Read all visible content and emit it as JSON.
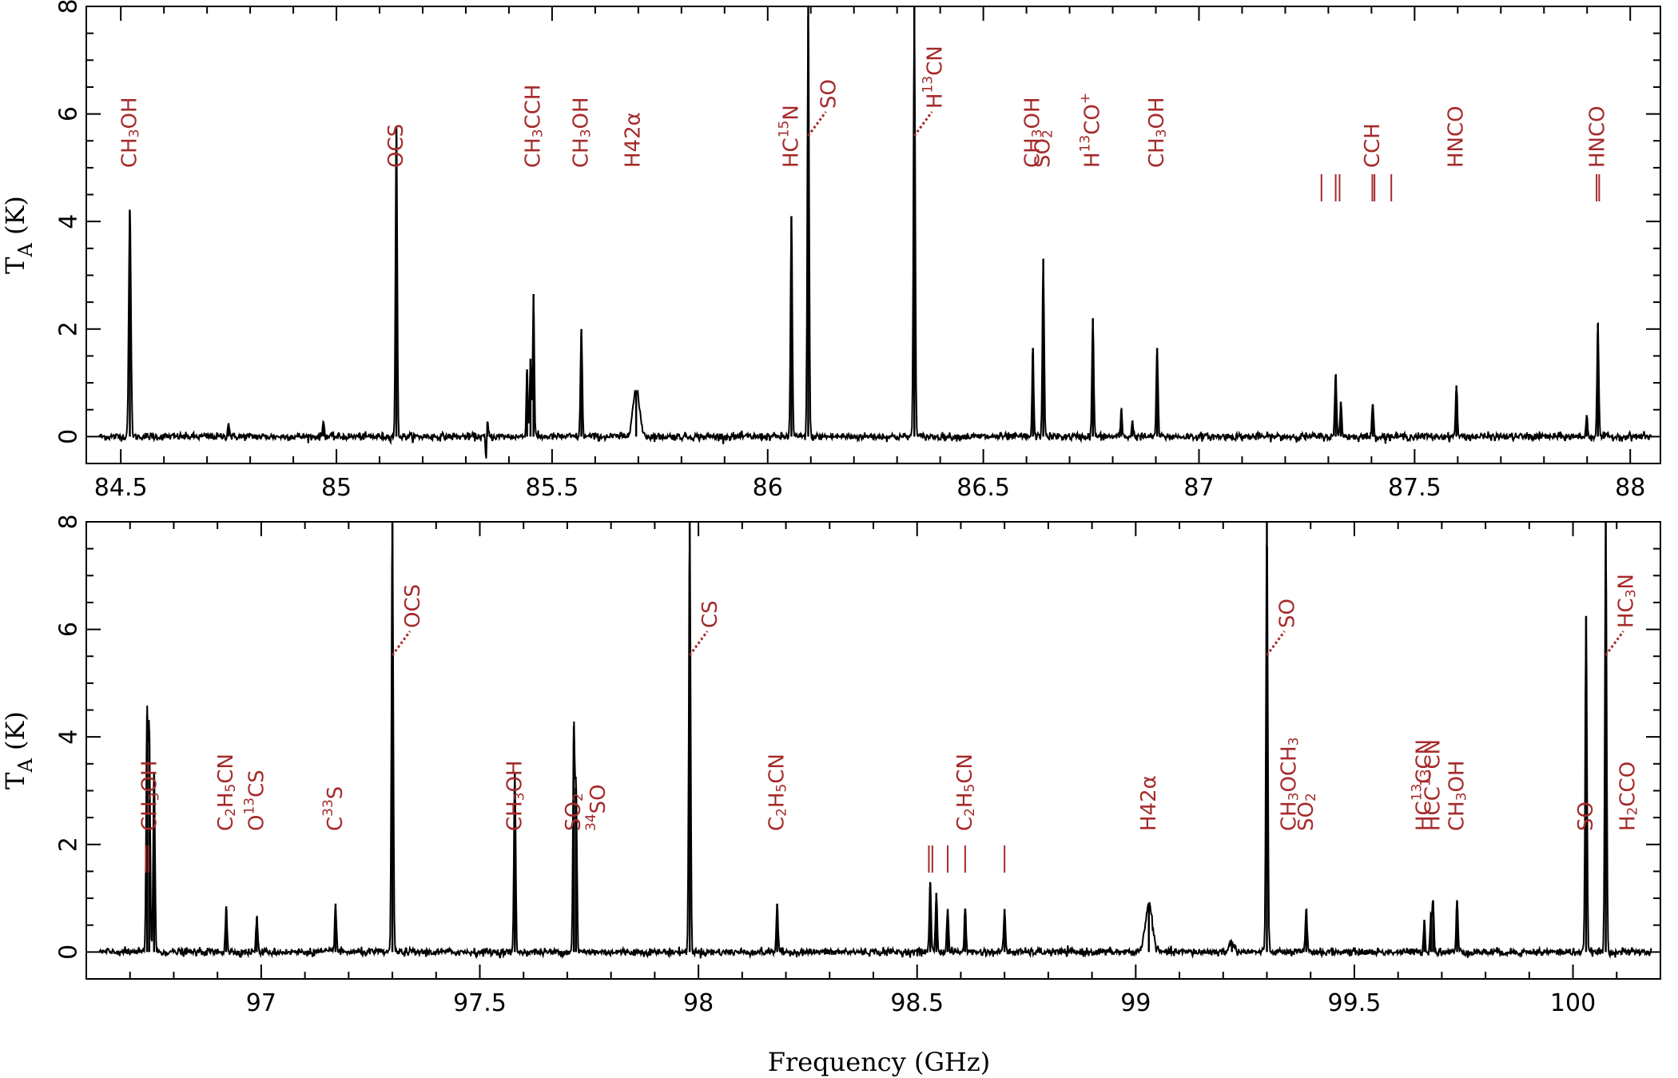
{
  "chart_data": [
    {
      "type": "line",
      "panel": "top",
      "xlim": [
        84.42,
        88.07
      ],
      "ylim": [
        -0.5,
        8
      ],
      "xticks": [
        84.5,
        85,
        85.5,
        86,
        86.5,
        87,
        87.5,
        88
      ],
      "xtick_labels": [
        "84.5",
        "85",
        "85.5",
        "86",
        "86.5",
        "87",
        "87.5",
        "88"
      ],
      "yticks": [
        0,
        2,
        4,
        6,
        8
      ],
      "ytick_labels": [
        "0",
        "2",
        "4",
        "6",
        "8"
      ],
      "ylabel": "T",
      "ylabel_sub": "A",
      "ylabel_unit": "(K)",
      "xlabel": "",
      "noise_sigma": 0.035,
      "peaks": [
        {
          "x": 84.521,
          "y": 4.2,
          "w": 0.0025
        },
        {
          "x": 84.75,
          "y": 0.25,
          "w": 0.002
        },
        {
          "x": 84.97,
          "y": 0.28,
          "w": 0.002
        },
        {
          "x": 85.139,
          "y": 5.75,
          "w": 0.002
        },
        {
          "x": 85.35,
          "y": 0.28,
          "w": 0.002
        },
        {
          "x": 85.442,
          "y": 1.25,
          "w": 0.0018
        },
        {
          "x": 85.45,
          "y": 1.45,
          "w": 0.0018
        },
        {
          "x": 85.457,
          "y": 2.65,
          "w": 0.0018
        },
        {
          "x": 85.568,
          "y": 2.0,
          "w": 0.002
        },
        {
          "x": 85.695,
          "y": 0.85,
          "w": 0.008
        },
        {
          "x": 86.055,
          "y": 4.1,
          "w": 0.002
        },
        {
          "x": 86.094,
          "y": 8.0,
          "w": 0.002
        },
        {
          "x": 86.34,
          "y": 8.0,
          "w": 0.002
        },
        {
          "x": 86.615,
          "y": 1.65,
          "w": 0.0018
        },
        {
          "x": 86.639,
          "y": 3.3,
          "w": 0.002
        },
        {
          "x": 86.754,
          "y": 2.2,
          "w": 0.002
        },
        {
          "x": 86.82,
          "y": 0.5,
          "w": 0.0018
        },
        {
          "x": 86.846,
          "y": 0.3,
          "w": 0.0018
        },
        {
          "x": 86.903,
          "y": 1.65,
          "w": 0.002
        },
        {
          "x": 87.317,
          "y": 1.15,
          "w": 0.002
        },
        {
          "x": 87.329,
          "y": 0.65,
          "w": 0.002
        },
        {
          "x": 87.403,
          "y": 0.6,
          "w": 0.002
        },
        {
          "x": 87.597,
          "y": 0.95,
          "w": 0.002
        },
        {
          "x": 87.899,
          "y": 0.4,
          "w": 0.0018
        },
        {
          "x": 87.925,
          "y": 2.1,
          "w": 0.002
        }
      ],
      "dips": [
        {
          "x": 85.347,
          "y": -0.5,
          "w": 0.0015
        }
      ],
      "labels": [
        {
          "x": 84.521,
          "segments": [
            [
              "CH"
            ],
            [
              "3",
              "sub"
            ],
            [
              "OH"
            ]
          ]
        },
        {
          "x": 85.139,
          "segments": [
            [
              "OCS"
            ]
          ]
        },
        {
          "x": 85.457,
          "segments": [
            [
              "CH"
            ],
            [
              "3",
              "sub"
            ],
            [
              "CCH"
            ]
          ]
        },
        {
          "x": 85.568,
          "segments": [
            [
              "CH"
            ],
            [
              "3",
              "sub"
            ],
            [
              "OH"
            ]
          ]
        },
        {
          "x": 85.688,
          "segments": [
            [
              "H42α"
            ]
          ]
        },
        {
          "x": 86.055,
          "segments": [
            [
              "HC"
            ],
            [
              "15",
              "sup"
            ],
            [
              "N"
            ]
          ]
        },
        {
          "x": 86.094,
          "segments": [
            [
              "SO"
            ]
          ],
          "dotted": true
        },
        {
          "x": 86.34,
          "segments": [
            [
              "H"
            ],
            [
              "13",
              "sup"
            ],
            [
              "CN"
            ]
          ],
          "dotted": true
        },
        {
          "x": 86.615,
          "segments": [
            [
              "CH"
            ],
            [
              "3",
              "sub"
            ],
            [
              "OH"
            ]
          ]
        },
        {
          "x": 86.639,
          "segments": [
            [
              "SO"
            ],
            [
              "2",
              "sub"
            ]
          ]
        },
        {
          "x": 86.754,
          "segments": [
            [
              "H"
            ],
            [
              "13",
              "sup"
            ],
            [
              "CO"
            ],
            [
              "+",
              "sup"
            ]
          ]
        },
        {
          "x": 86.903,
          "segments": [
            [
              "CH"
            ],
            [
              "3",
              "sub"
            ],
            [
              "OH"
            ]
          ]
        },
        {
          "x": 87.403,
          "segments": [
            [
              "CCH"
            ]
          ]
        },
        {
          "x": 87.597,
          "segments": [
            [
              "HNCO"
            ]
          ]
        },
        {
          "x": 87.925,
          "segments": [
            [
              "HNCO"
            ]
          ]
        }
      ],
      "markers": [
        87.284,
        87.317,
        87.326,
        87.402,
        87.407,
        87.446,
        87.922,
        87.928
      ]
    },
    {
      "type": "line",
      "panel": "bottom",
      "xlim": [
        96.6,
        100.2
      ],
      "ylim": [
        -0.5,
        8
      ],
      "xticks": [
        97,
        97.5,
        98,
        98.5,
        99,
        99.5,
        100
      ],
      "xtick_labels": [
        "97",
        "97.5",
        "98",
        "98.5",
        "99",
        "99.5",
        "100"
      ],
      "yticks": [
        0,
        2,
        4,
        6,
        8
      ],
      "ytick_labels": [
        "0",
        "2",
        "4",
        "6",
        "8"
      ],
      "ylabel": "T",
      "ylabel_sub": "A",
      "ylabel_unit": "(K)",
      "xlabel": "Frequency (GHz)",
      "noise_sigma": 0.035,
      "peaks": [
        {
          "x": 96.739,
          "y": 4.4,
          "w": 0.002
        },
        {
          "x": 96.744,
          "y": 4.1,
          "w": 0.002
        },
        {
          "x": 96.755,
          "y": 3.35,
          "w": 0.002
        },
        {
          "x": 96.92,
          "y": 0.85,
          "w": 0.002
        },
        {
          "x": 96.99,
          "y": 0.65,
          "w": 0.002
        },
        {
          "x": 97.17,
          "y": 0.9,
          "w": 0.002
        },
        {
          "x": 97.3,
          "y": 8.0,
          "w": 0.002
        },
        {
          "x": 97.58,
          "y": 3.35,
          "w": 0.002
        },
        {
          "x": 97.715,
          "y": 4.2,
          "w": 0.002
        },
        {
          "x": 97.72,
          "y": 3.05,
          "w": 0.002
        },
        {
          "x": 97.98,
          "y": 8.0,
          "w": 0.002
        },
        {
          "x": 98.18,
          "y": 0.9,
          "w": 0.002
        },
        {
          "x": 98.53,
          "y": 1.3,
          "w": 0.002
        },
        {
          "x": 98.544,
          "y": 1.1,
          "w": 0.002
        },
        {
          "x": 98.57,
          "y": 0.8,
          "w": 0.002
        },
        {
          "x": 98.61,
          "y": 0.8,
          "w": 0.002
        },
        {
          "x": 98.7,
          "y": 0.8,
          "w": 0.002
        },
        {
          "x": 99.03,
          "y": 0.9,
          "w": 0.008
        },
        {
          "x": 99.22,
          "y": 0.18,
          "w": 0.006
        },
        {
          "x": 99.3,
          "y": 8.0,
          "w": 0.002
        },
        {
          "x": 99.39,
          "y": 0.8,
          "w": 0.002
        },
        {
          "x": 99.66,
          "y": 0.6,
          "w": 0.0018
        },
        {
          "x": 99.675,
          "y": 0.7,
          "w": 0.0018
        },
        {
          "x": 99.68,
          "y": 0.95,
          "w": 0.002
        },
        {
          "x": 99.735,
          "y": 0.95,
          "w": 0.002
        },
        {
          "x": 100.03,
          "y": 6.25,
          "w": 0.002
        },
        {
          "x": 100.075,
          "y": 8.0,
          "w": 0.002
        }
      ],
      "dips": [],
      "labels": [
        {
          "x": 96.745,
          "segments": [
            [
              "CH"
            ],
            [
              "3",
              "sub"
            ],
            [
              "OH"
            ]
          ]
        },
        {
          "x": 96.92,
          "segments": [
            [
              "C"
            ],
            [
              "2",
              "sub"
            ],
            [
              "H"
            ],
            [
              "5",
              "sub"
            ],
            [
              "CN"
            ]
          ]
        },
        {
          "x": 96.99,
          "segments": [
            [
              "O"
            ],
            [
              "13",
              "sup"
            ],
            [
              "CS"
            ]
          ]
        },
        {
          "x": 97.17,
          "segments": [
            [
              "C"
            ],
            [
              "33",
              "sup"
            ],
            [
              "S"
            ]
          ]
        },
        {
          "x": 97.3,
          "segments": [
            [
              "OCS"
            ]
          ],
          "dotted": true
        },
        {
          "x": 97.58,
          "segments": [
            [
              "CH"
            ],
            [
              "3",
              "sub"
            ],
            [
              "OH"
            ]
          ]
        },
        {
          "x": 97.715,
          "segments": [
            [
              "SO"
            ],
            [
              "2",
              "sub"
            ]
          ]
        },
        {
          "x": 97.72,
          "segments": [
            [
              "34",
              "sup"
            ],
            [
              "SO"
            ]
          ]
        },
        {
          "x": 97.98,
          "segments": [
            [
              "CS"
            ]
          ],
          "dotted": true
        },
        {
          "x": 98.18,
          "segments": [
            [
              "C"
            ],
            [
              "2",
              "sub"
            ],
            [
              "H"
            ],
            [
              "5",
              "sub"
            ],
            [
              "CN"
            ]
          ]
        },
        {
          "x": 98.61,
          "segments": [
            [
              "C"
            ],
            [
              "2",
              "sub"
            ],
            [
              "H"
            ],
            [
              "5",
              "sub"
            ],
            [
              "CN"
            ]
          ]
        },
        {
          "x": 99.03,
          "segments": [
            [
              "H42α"
            ]
          ]
        },
        {
          "x": 99.3,
          "segments": [
            [
              "SO"
            ]
          ],
          "dotted": true
        },
        {
          "x": 99.3,
          "segments": [
            [
              "CH"
            ],
            [
              "3",
              "sub"
            ],
            [
              "OCH"
            ],
            [
              "3",
              "sub"
            ]
          ]
        },
        {
          "x": 99.39,
          "segments": [
            [
              "SO"
            ],
            [
              "2",
              "sub"
            ]
          ]
        },
        {
          "x": 99.66,
          "segments": [
            [
              "HC"
            ],
            [
              "13",
              "sup"
            ],
            [
              "CCN"
            ]
          ]
        },
        {
          "x": 99.68,
          "segments": [
            [
              "HCC"
            ],
            [
              "13",
              "sup"
            ],
            [
              "CN"
            ]
          ]
        },
        {
          "x": 99.735,
          "segments": [
            [
              "CH"
            ],
            [
              "3",
              "sub"
            ],
            [
              "OH"
            ]
          ]
        },
        {
          "x": 100.03,
          "segments": [
            [
              "SO"
            ]
          ]
        },
        {
          "x": 100.075,
          "segments": [
            [
              "HC"
            ],
            [
              "3",
              "sub"
            ],
            [
              "N"
            ]
          ],
          "dotted": true
        },
        {
          "x": 100.075,
          "segments": [
            [
              "H"
            ],
            [
              "2",
              "sub"
            ],
            [
              "CCO"
            ]
          ]
        }
      ],
      "markers": [
        96.736,
        96.742,
        98.527,
        98.535,
        98.57,
        98.61,
        98.7
      ]
    }
  ],
  "colors": {
    "spectrum": "#000000",
    "annotation": "#a52a2a",
    "axis": "#000000"
  }
}
